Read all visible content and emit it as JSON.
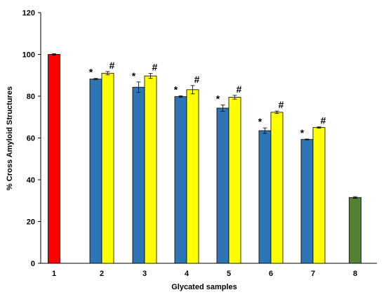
{
  "chart_data": {
    "type": "bar",
    "title": "",
    "xlabel": "Glycated samples",
    "ylabel": "% Cross Amyloid Structures",
    "ylim": [
      0,
      120
    ],
    "yticks": [
      "0",
      "20",
      "40",
      "60",
      "80",
      "100",
      "120"
    ],
    "categories": [
      "1",
      "2",
      "3",
      "4",
      "5",
      "6",
      "7",
      "8"
    ],
    "grid": false,
    "legend": "none",
    "bars": [
      {
        "category": "1",
        "value": 100,
        "error": 0.3,
        "color": "#ff0000",
        "mark": ""
      },
      {
        "category": "2",
        "value": 88.2,
        "error": 0.3,
        "color": "#2e75b6",
        "mark": "*"
      },
      {
        "category": "2",
        "value": 91.0,
        "error": 0.8,
        "color": "#ffff00",
        "mark": "#"
      },
      {
        "category": "3",
        "value": 84.3,
        "error": 2.5,
        "color": "#2e75b6",
        "mark": "*"
      },
      {
        "category": "3",
        "value": 89.7,
        "error": 1.2,
        "color": "#ffff00",
        "mark": "#"
      },
      {
        "category": "4",
        "value": 79.8,
        "error": 0.4,
        "color": "#2e75b6",
        "mark": "*"
      },
      {
        "category": "4",
        "value": 83.1,
        "error": 2.0,
        "color": "#ffff00",
        "mark": "#"
      },
      {
        "category": "5",
        "value": 74.3,
        "error": 1.5,
        "color": "#2e75b6",
        "mark": "*"
      },
      {
        "category": "5",
        "value": 79.5,
        "error": 0.9,
        "color": "#ffff00",
        "mark": "#"
      },
      {
        "category": "6",
        "value": 63.5,
        "error": 1.3,
        "color": "#2e75b6",
        "mark": "*"
      },
      {
        "category": "6",
        "value": 72.3,
        "error": 0.6,
        "color": "#ffff00",
        "mark": "#"
      },
      {
        "category": "7",
        "value": 59.3,
        "error": 0.2,
        "color": "#2e75b6",
        "mark": "*"
      },
      {
        "category": "7",
        "value": 65.0,
        "error": 0.3,
        "color": "#ffff00",
        "mark": "#"
      },
      {
        "category": "8",
        "value": 31.5,
        "error": 0.4,
        "color": "#548235",
        "mark": ""
      }
    ]
  }
}
